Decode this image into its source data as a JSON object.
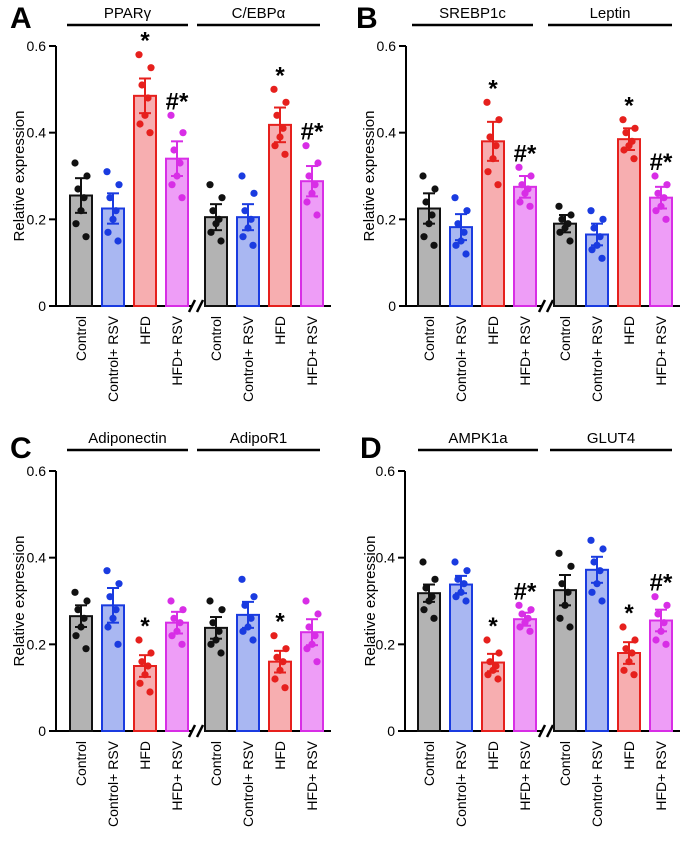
{
  "chart_data": [
    {
      "type": "bar",
      "panel_label": "A",
      "ylabel": "Relative expression",
      "ylim": [
        0,
        0.6
      ],
      "yticks": [
        "0",
        "0.2",
        "0.4",
        "0.6"
      ],
      "categories": [
        "Control",
        "Control+ RSV",
        "HFD",
        "HFD+ RSV"
      ],
      "colors": [
        "#b3b3b3",
        "#a9b7f2",
        "#f7aeb0",
        "#ee9df7"
      ],
      "dot_colors": [
        "#111111",
        "#1a3be0",
        "#e6201d",
        "#d82ee6"
      ],
      "groups": [
        {
          "title": "PPARγ",
          "values": [
            0.255,
            0.225,
            0.485,
            0.34
          ],
          "errors": [
            0.04,
            0.035,
            0.04,
            0.04
          ],
          "significance": [
            "",
            "",
            "*",
            "#*"
          ],
          "points": [
            [
              0.33,
              0.3,
              0.27,
              0.25,
              0.22,
              0.19,
              0.16
            ],
            [
              0.31,
              0.28,
              0.25,
              0.22,
              0.2,
              0.17,
              0.15
            ],
            [
              0.58,
              0.55,
              0.51,
              0.48,
              0.44,
              0.42,
              0.4
            ],
            [
              0.44,
              0.4,
              0.36,
              0.33,
              0.3,
              0.28,
              0.25
            ]
          ]
        },
        {
          "title": "C/EBPα",
          "values": [
            0.205,
            0.205,
            0.418,
            0.288
          ],
          "errors": [
            0.03,
            0.03,
            0.04,
            0.035
          ],
          "significance": [
            "",
            "",
            "*",
            "#*"
          ],
          "points": [
            [
              0.28,
              0.25,
              0.22,
              0.2,
              0.19,
              0.17,
              0.15
            ],
            [
              0.3,
              0.26,
              0.22,
              0.2,
              0.18,
              0.16,
              0.14
            ],
            [
              0.5,
              0.47,
              0.44,
              0.41,
              0.39,
              0.37,
              0.35
            ],
            [
              0.37,
              0.33,
              0.3,
              0.28,
              0.26,
              0.24,
              0.21
            ]
          ]
        }
      ]
    },
    {
      "type": "bar",
      "panel_label": "B",
      "ylabel": "Relative expression",
      "ylim": [
        0,
        0.6
      ],
      "yticks": [
        "0",
        "0.2",
        "0.4",
        "0.6"
      ],
      "categories": [
        "Control",
        "Control+ RSV",
        "HFD",
        "HFD+ RSV"
      ],
      "colors": [
        "#b3b3b3",
        "#a9b7f2",
        "#f7aeb0",
        "#ee9df7"
      ],
      "dot_colors": [
        "#111111",
        "#1a3be0",
        "#e6201d",
        "#d82ee6"
      ],
      "groups": [
        {
          "title": "SREBP1c",
          "values": [
            0.225,
            0.182,
            0.38,
            0.275
          ],
          "errors": [
            0.035,
            0.03,
            0.045,
            0.025
          ],
          "significance": [
            "",
            "",
            "*",
            "#*"
          ],
          "points": [
            [
              0.3,
              0.27,
              0.24,
              0.21,
              0.19,
              0.16,
              0.14
            ],
            [
              0.25,
              0.22,
              0.19,
              0.17,
              0.15,
              0.14,
              0.12
            ],
            [
              0.47,
              0.43,
              0.39,
              0.37,
              0.34,
              0.31,
              0.28
            ],
            [
              0.32,
              0.3,
              0.28,
              0.27,
              0.26,
              0.24,
              0.23
            ]
          ]
        },
        {
          "title": "Leptin",
          "values": [
            0.19,
            0.165,
            0.385,
            0.25
          ],
          "errors": [
            0.02,
            0.025,
            0.025,
            0.025
          ],
          "significance": [
            "",
            "",
            "*",
            "#*"
          ],
          "points": [
            [
              0.23,
              0.21,
              0.2,
              0.19,
              0.18,
              0.17,
              0.15
            ],
            [
              0.22,
              0.2,
              0.18,
              0.16,
              0.14,
              0.13,
              0.11
            ],
            [
              0.43,
              0.41,
              0.4,
              0.38,
              0.37,
              0.36,
              0.34
            ],
            [
              0.3,
              0.28,
              0.26,
              0.25,
              0.23,
              0.22,
              0.2
            ]
          ]
        }
      ]
    },
    {
      "type": "bar",
      "panel_label": "C",
      "ylabel": "Relative expression",
      "ylim": [
        0,
        0.6
      ],
      "yticks": [
        "0",
        "0.2",
        "0.4",
        "0.6"
      ],
      "categories": [
        "Control",
        "Control+ RSV",
        "HFD",
        "HFD+ RSV"
      ],
      "colors": [
        "#b3b3b3",
        "#a9b7f2",
        "#f7aeb0",
        "#ee9df7"
      ],
      "dot_colors": [
        "#111111",
        "#1a3be0",
        "#e6201d",
        "#d82ee6"
      ],
      "groups": [
        {
          "title": "Adiponectin",
          "values": [
            0.265,
            0.29,
            0.15,
            0.25
          ],
          "errors": [
            0.025,
            0.04,
            0.025,
            0.025
          ],
          "significance": [
            "",
            "",
            "*",
            ""
          ],
          "points": [
            [
              0.32,
              0.3,
              0.28,
              0.26,
              0.24,
              0.22,
              0.19
            ],
            [
              0.37,
              0.34,
              0.31,
              0.28,
              0.26,
              0.24,
              0.2
            ],
            [
              0.21,
              0.18,
              0.16,
              0.15,
              0.13,
              0.11,
              0.09
            ],
            [
              0.3,
              0.28,
              0.26,
              0.25,
              0.23,
              0.22,
              0.2
            ]
          ]
        },
        {
          "title": "AdipoR1",
          "values": [
            0.238,
            0.268,
            0.16,
            0.228
          ],
          "errors": [
            0.025,
            0.03,
            0.025,
            0.03
          ],
          "significance": [
            "",
            "",
            "*",
            ""
          ],
          "points": [
            [
              0.3,
              0.28,
              0.25,
              0.23,
              0.21,
              0.2,
              0.18
            ],
            [
              0.35,
              0.31,
              0.29,
              0.26,
              0.24,
              0.23,
              0.21
            ],
            [
              0.22,
              0.19,
              0.17,
              0.16,
              0.14,
              0.12,
              0.1
            ],
            [
              0.3,
              0.27,
              0.24,
              0.22,
              0.2,
              0.19,
              0.16
            ]
          ]
        }
      ]
    },
    {
      "type": "bar",
      "panel_label": "D",
      "ylabel": "Relative expression",
      "ylim": [
        0,
        0.6
      ],
      "yticks": [
        "0",
        "0.2",
        "0.4",
        "0.6"
      ],
      "categories": [
        "Control",
        "Control+ RSV",
        "HFD",
        "HFD+ RSV"
      ],
      "colors": [
        "#b3b3b3",
        "#a9b7f2",
        "#f7aeb0",
        "#ee9df7"
      ],
      "dot_colors": [
        "#111111",
        "#1a3be0",
        "#e6201d",
        "#d82ee6"
      ],
      "groups": [
        {
          "title": "AMPK1a",
          "values": [
            0.318,
            0.338,
            0.158,
            0.258
          ],
          "errors": [
            0.02,
            0.02,
            0.02,
            0.015
          ],
          "significance": [
            "",
            "",
            "*",
            "#*"
          ],
          "points": [
            [
              0.39,
              0.35,
              0.33,
              0.31,
              0.3,
              0.28,
              0.26
            ],
            [
              0.39,
              0.37,
              0.35,
              0.34,
              0.32,
              0.31,
              0.3
            ],
            [
              0.21,
              0.18,
              0.16,
              0.15,
              0.14,
              0.13,
              0.12
            ],
            [
              0.29,
              0.28,
              0.27,
              0.26,
              0.25,
              0.24,
              0.23
            ]
          ]
        },
        {
          "title": "GLUT4",
          "values": [
            0.325,
            0.372,
            0.18,
            0.255
          ],
          "errors": [
            0.035,
            0.03,
            0.025,
            0.025
          ],
          "significance": [
            "",
            "",
            "*",
            "#*"
          ],
          "points": [
            [
              0.41,
              0.38,
              0.34,
              0.32,
              0.29,
              0.26,
              0.24
            ],
            [
              0.44,
              0.42,
              0.39,
              0.37,
              0.34,
              0.32,
              0.3
            ],
            [
              0.24,
              0.21,
              0.19,
              0.18,
              0.16,
              0.14,
              0.13
            ],
            [
              0.31,
              0.29,
              0.27,
              0.25,
              0.23,
              0.21,
              0.2
            ]
          ]
        }
      ]
    }
  ]
}
